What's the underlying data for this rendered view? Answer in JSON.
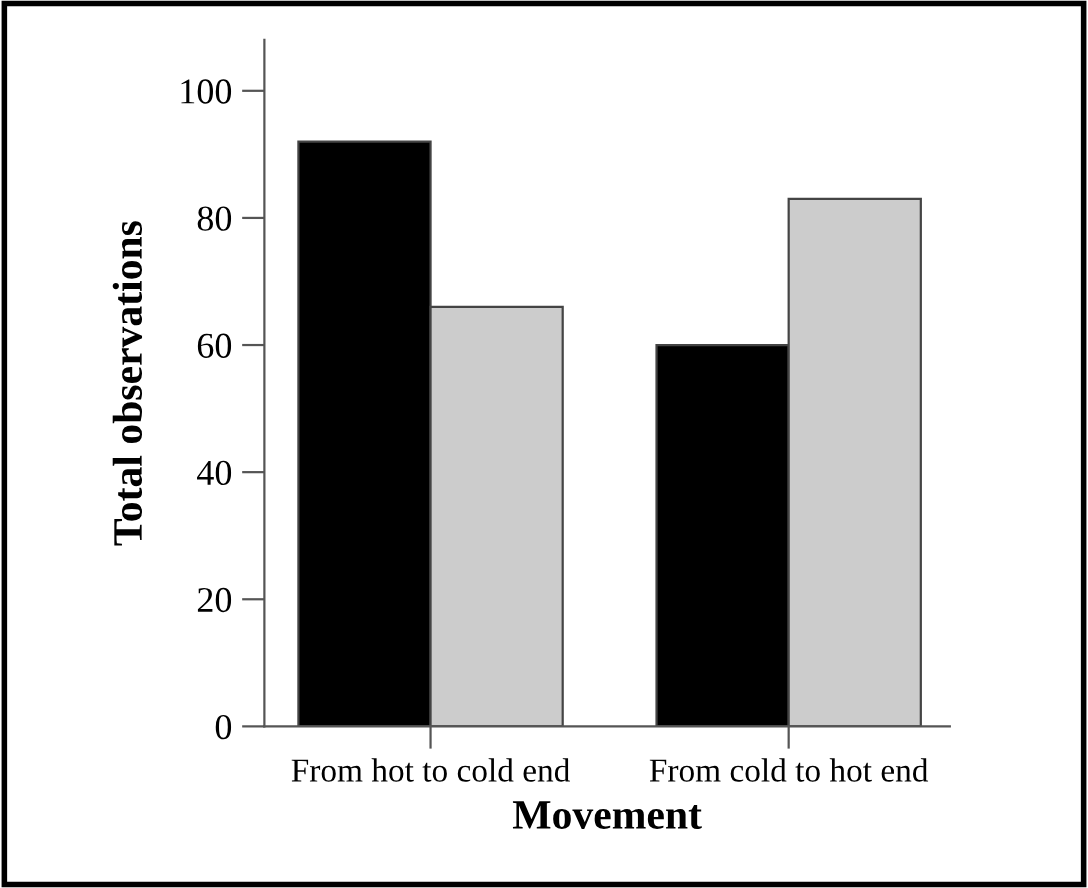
{
  "chart_data": {
    "type": "bar",
    "xlabel": "Movement",
    "ylabel": "Total observations",
    "categories": [
      "From hot to cold end",
      "From cold to hot end"
    ],
    "series": [
      {
        "color": "#000000",
        "values": [
          92,
          60
        ]
      },
      {
        "color": "#cccccc",
        "values": [
          66,
          83
        ]
      }
    ],
    "ylim": [
      0,
      108
    ],
    "yticks": [
      0,
      20,
      40,
      60,
      80,
      100
    ],
    "grid": false,
    "legend": false
  }
}
